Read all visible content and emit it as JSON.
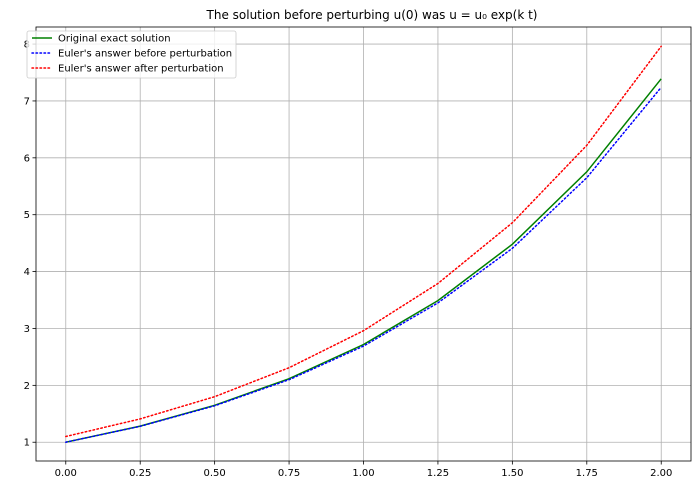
{
  "chart_data": {
    "type": "line",
    "title": "The solution before perturbing u(0) was u = u₀ exp(k t)",
    "xlabel": "",
    "ylabel": "",
    "xlim": [
      -0.1,
      2.1
    ],
    "ylim": [
      0.67,
      8.3
    ],
    "xticks": [
      0.0,
      0.25,
      0.5,
      0.75,
      1.0,
      1.25,
      1.5,
      1.75,
      2.0
    ],
    "xtick_labels": [
      "0.00",
      "0.25",
      "0.50",
      "0.75",
      "1.00",
      "1.25",
      "1.50",
      "1.75",
      "2.00"
    ],
    "yticks": [
      1,
      2,
      3,
      4,
      5,
      6,
      7,
      8
    ],
    "ytick_labels": [
      "1",
      "2",
      "3",
      "4",
      "5",
      "6",
      "7",
      "8"
    ],
    "grid": true,
    "legend_position": "top-left",
    "series": [
      {
        "name": "Original exact solution",
        "color": "#008000",
        "style": "solid",
        "x": [
          0.0,
          0.25,
          0.5,
          0.75,
          1.0,
          1.25,
          1.5,
          1.75,
          2.0
        ],
        "values": [
          1.0,
          1.284,
          1.649,
          2.117,
          2.718,
          3.49,
          4.482,
          5.755,
          7.389
        ]
      },
      {
        "name": "Euler's answer before perturbation",
        "color": "#0000ff",
        "style": "dotted",
        "x": [
          0.0,
          0.25,
          0.5,
          0.75,
          1.0,
          1.25,
          1.5,
          1.75,
          2.0
        ],
        "values": [
          1.0,
          1.28,
          1.64,
          2.1,
          2.69,
          3.45,
          4.41,
          5.65,
          7.24
        ]
      },
      {
        "name": "Euler's answer after perturbation",
        "color": "#ff0000",
        "style": "dotted",
        "x": [
          0.0,
          0.25,
          0.5,
          0.75,
          1.0,
          1.25,
          1.5,
          1.75,
          2.0
        ],
        "values": [
          1.1,
          1.41,
          1.8,
          2.31,
          2.96,
          3.79,
          4.86,
          6.22,
          7.96
        ]
      }
    ]
  }
}
